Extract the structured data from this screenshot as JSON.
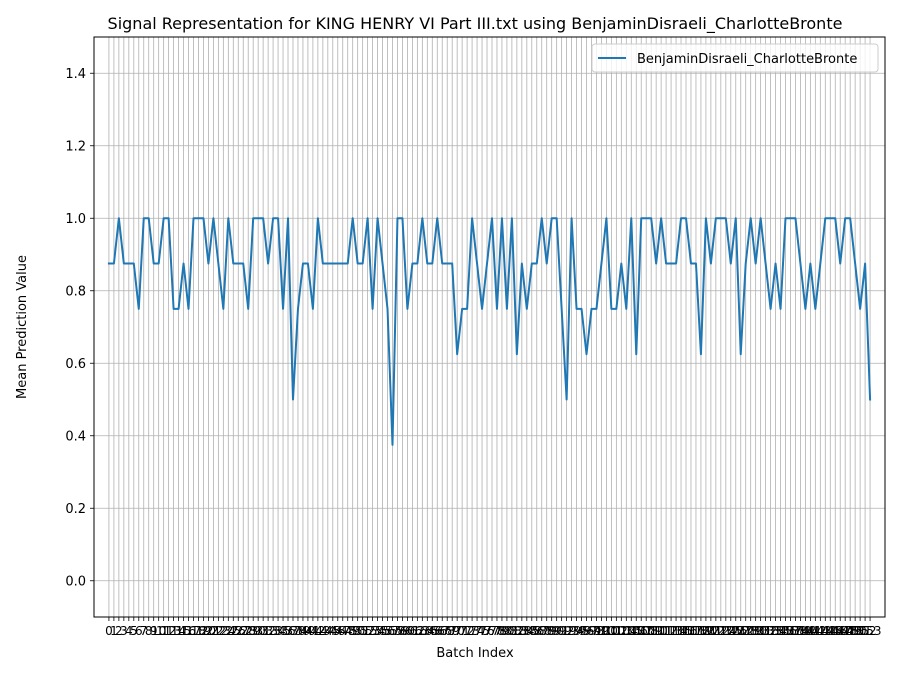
{
  "chart_data": {
    "type": "line",
    "title": "Signal Representation for KING HENRY VI Part III.txt using BenjaminDisraeli_CharlotteBronte",
    "xlabel": "Batch Index",
    "ylabel": "Mean Prediction Value",
    "ylim": [
      -0.1,
      1.5
    ],
    "xlim": [
      -3,
      156
    ],
    "yticks": [
      0.0,
      0.2,
      0.4,
      0.6,
      0.8,
      1.0,
      1.2,
      1.4
    ],
    "ytick_labels": [
      "0.0",
      "0.2",
      "0.4",
      "0.6",
      "0.8",
      "1.0",
      "1.2",
      "1.4"
    ],
    "grid": true,
    "legend_position": "top-right",
    "colors": {
      "series": "#1f77b4",
      "grid": "#b0b0b0"
    },
    "series": [
      {
        "name": "BenjaminDisraeli_CharlotteBronte",
        "values": [
          0.875,
          0.875,
          1.0,
          0.875,
          0.875,
          0.875,
          0.75,
          1.0,
          1.0,
          0.875,
          0.875,
          1.0,
          1.0,
          0.75,
          0.75,
          0.875,
          0.75,
          1.0,
          1.0,
          1.0,
          0.875,
          1.0,
          0.875,
          0.75,
          1.0,
          0.875,
          0.875,
          0.875,
          0.75,
          1.0,
          1.0,
          1.0,
          0.875,
          1.0,
          1.0,
          0.75,
          1.0,
          0.5,
          0.75,
          0.875,
          0.875,
          0.75,
          1.0,
          0.875,
          0.875,
          0.875,
          0.875,
          0.875,
          0.875,
          1.0,
          0.875,
          0.875,
          1.0,
          0.75,
          1.0,
          0.875,
          0.75,
          0.375,
          1.0,
          1.0,
          0.75,
          0.875,
          0.875,
          1.0,
          0.875,
          0.875,
          1.0,
          0.875,
          0.875,
          0.875,
          0.625,
          0.75,
          0.75,
          1.0,
          0.875,
          0.75,
          0.875,
          1.0,
          0.75,
          1.0,
          0.75,
          1.0,
          0.625,
          0.875,
          0.75,
          0.875,
          0.875,
          1.0,
          0.875,
          1.0,
          1.0,
          0.75,
          0.5,
          1.0,
          0.75,
          0.75,
          0.625,
          0.75,
          0.75,
          0.875,
          1.0,
          0.75,
          0.75,
          0.875,
          0.75,
          1.0,
          0.625,
          1.0,
          1.0,
          1.0,
          0.875,
          1.0,
          0.875,
          0.875,
          0.875,
          1.0,
          1.0,
          0.875,
          0.875,
          0.625,
          1.0,
          0.875,
          1.0,
          1.0,
          1.0,
          0.875,
          1.0,
          0.625,
          0.875,
          1.0,
          0.875,
          1.0,
          0.875,
          0.75,
          0.875,
          0.75,
          1.0,
          1.0,
          1.0,
          0.875,
          0.75,
          0.875,
          0.75,
          0.875,
          1.0,
          1.0,
          1.0,
          0.875,
          1.0,
          1.0,
          0.875,
          0.75,
          0.875,
          0.5
        ]
      }
    ]
  }
}
